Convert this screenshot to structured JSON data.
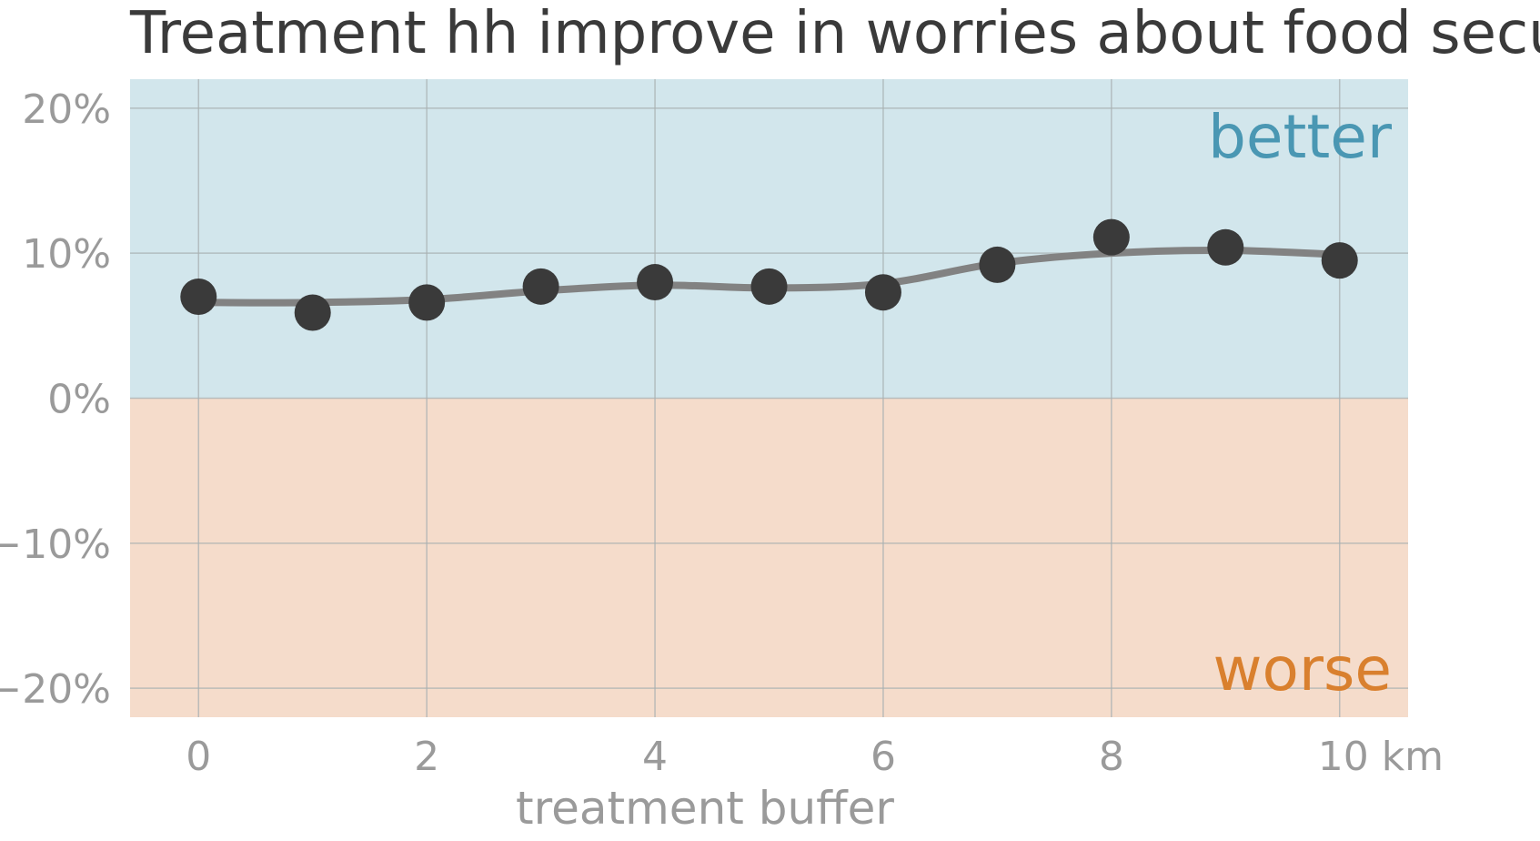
{
  "chart_data": {
    "type": "line",
    "title": "Treatment hh improve in worries about food security",
    "xlabel": "treatment buffer",
    "ylabel": "",
    "x": [
      0,
      1,
      2,
      3,
      4,
      5,
      6,
      7,
      8,
      9,
      10
    ],
    "series": [
      {
        "values": [
          7.0,
          5.9,
          6.6,
          7.7,
          8.0,
          7.7,
          7.3,
          9.2,
          11.1,
          10.4,
          9.5
        ],
        "smoothed": [
          6.6,
          6.6,
          6.8,
          7.4,
          7.8,
          7.6,
          7.9,
          9.3,
          10.0,
          10.2,
          9.9
        ]
      }
    ],
    "xlim": [
      -0.6,
      10.6
    ],
    "ylim": [
      -22,
      22
    ],
    "x_ticks": [
      0,
      2,
      4,
      6,
      8,
      10
    ],
    "x_tick_labels": [
      "0",
      "2",
      "4",
      "6",
      "8",
      "10 km"
    ],
    "y_ticks": [
      20,
      10,
      0,
      -10,
      -20
    ],
    "y_tick_labels": [
      "20%",
      "10%",
      "0%",
      "−10%",
      "−20%"
    ],
    "grid": true,
    "regions": [
      {
        "label": "better",
        "from": 0,
        "to": 22,
        "color": "#d2e6ec",
        "text_color": "#4a97b3"
      },
      {
        "label": "worse",
        "from": -22,
        "to": 0,
        "color": "#f5dccb",
        "text_color": "#d9802e"
      }
    ],
    "colors": {
      "points": "#3a3a3a",
      "line": "#828282",
      "grid": "#a8b0b2"
    }
  }
}
